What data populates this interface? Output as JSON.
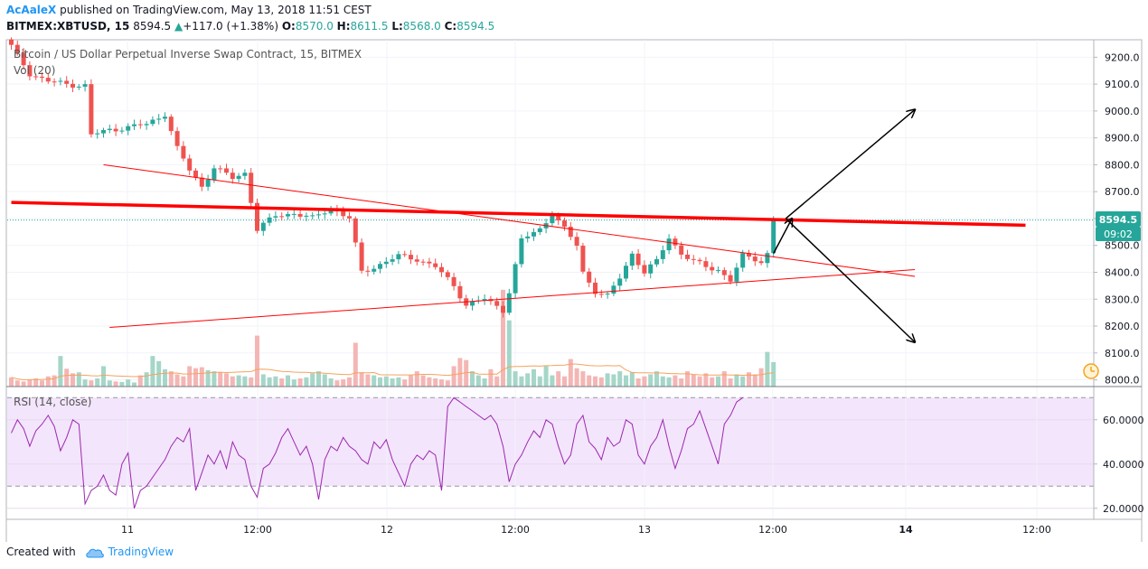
{
  "header": {
    "author": "AcAaleX",
    "published": "published on TradingView.com, May 13, 2018 11:51 CEST",
    "symbol": "BITMEX:XBTUSD, 15",
    "last": "8594.5",
    "change_arrow": "▲",
    "change": "+117.0 (+1.38%)",
    "o_label": "O:",
    "o": "8570.0",
    "h_label": "H:",
    "h": "8611.5",
    "l_label": "L:",
    "l": "8568.0",
    "c_label": "C:",
    "c": "8594.5"
  },
  "legend": {
    "main": "Bitcoin / US Dollar Perpetual Inverse Swap Contract, 15, BITMEX",
    "vol": "Vol (20)",
    "rsi": "RSI (14, close)"
  },
  "badges": {
    "price": "8594.5",
    "countdown": "09:02"
  },
  "footer": {
    "created_with": "Created with",
    "brand": "TradingView"
  },
  "colors": {
    "up": "#26a69a",
    "down": "#ef5350",
    "trendline": "#ff0000",
    "rsi_line": "#9c27b0",
    "rsi_band": "#f3e5fb",
    "badge": "#26a69a"
  },
  "chart_data": [
    {
      "type": "candlestick",
      "title": "Bitcoin / US Dollar Perpetual Inverse Swap Contract, 15, BITMEX",
      "x_ticks": [
        "11",
        "12:00",
        "12",
        "12:00",
        "13",
        "12:00",
        "14",
        "12:00"
      ],
      "y_ticks": [
        "9200.0",
        "9100.0",
        "9000.0",
        "8900.0",
        "8800.0",
        "8700.0",
        "8600.0",
        "8500.0",
        "8400.0",
        "8300.0",
        "8200.0",
        "8100.0",
        "8000.0"
      ],
      "ylim": [
        7975,
        9265
      ],
      "price_path": [
        [
          0,
          9240
        ],
        [
          3,
          9140
        ],
        [
          6,
          9110
        ],
        [
          9,
          9100
        ],
        [
          12,
          9095
        ],
        [
          13,
          8910
        ],
        [
          16,
          8930
        ],
        [
          19,
          8940
        ],
        [
          22,
          8950
        ],
        [
          25,
          8990
        ],
        [
          27,
          8860
        ],
        [
          29,
          8780
        ],
        [
          31,
          8720
        ],
        [
          33,
          8790
        ],
        [
          36,
          8750
        ],
        [
          38,
          8770
        ],
        [
          40,
          8560
        ],
        [
          43,
          8610
        ],
        [
          46,
          8620
        ],
        [
          49,
          8600
        ],
        [
          52,
          8640
        ],
        [
          55,
          8600
        ],
        [
          57,
          8400
        ],
        [
          60,
          8430
        ],
        [
          63,
          8460
        ],
        [
          66,
          8450
        ],
        [
          69,
          8420
        ],
        [
          72,
          8350
        ],
        [
          74,
          8280
        ],
        [
          77,
          8300
        ],
        [
          80,
          8260
        ],
        [
          81,
          8330
        ],
        [
          83,
          8520
        ],
        [
          86,
          8560
        ],
        [
          88,
          8620
        ],
        [
          90,
          8560
        ],
        [
          92,
          8500
        ],
        [
          93,
          8400
        ],
        [
          95,
          8330
        ],
        [
          97,
          8310
        ],
        [
          99,
          8380
        ],
        [
          101,
          8470
        ],
        [
          103,
          8400
        ],
        [
          105,
          8440
        ],
        [
          107,
          8530
        ],
        [
          109,
          8470
        ],
        [
          111,
          8440
        ],
        [
          113,
          8420
        ],
        [
          115,
          8410
        ],
        [
          117,
          8370
        ],
        [
          119,
          8460
        ],
        [
          121,
          8450
        ],
        [
          122,
          8440
        ],
        [
          123,
          8470
        ],
        [
          124,
          8594.5
        ]
      ],
      "trendlines": [
        {
          "name": "horizontal-resistance",
          "from": [
            0,
            8660
          ],
          "to": [
            165,
            8575
          ]
        },
        {
          "name": "descending-line",
          "from": [
            15,
            8800
          ],
          "to": [
            147,
            8385
          ]
        },
        {
          "name": "ascending-line",
          "from": [
            16,
            8195
          ],
          "to": [
            147,
            8410
          ]
        }
      ],
      "arrows": [
        {
          "from": [
            126,
            8600
          ],
          "to": [
            147,
            9005
          ]
        },
        {
          "from": [
            126,
            8600
          ],
          "to": [
            147,
            8140
          ]
        },
        {
          "from": [
            124,
            8470
          ],
          "to": [
            127,
            8600
          ]
        }
      ],
      "last_price": 8594.5
    },
    {
      "type": "bar",
      "title": "Vol (20)",
      "series": [
        {
          "values": [
            18,
            12,
            10,
            14,
            16,
            12,
            20,
            22,
            60,
            35,
            26,
            28,
            14,
            12,
            16,
            40,
            12,
            10,
            9,
            14,
            8,
            22,
            28,
            60,
            50,
            34,
            30,
            24,
            20,
            40,
            36,
            38,
            32,
            30,
            28,
            26,
            20,
            22,
            20,
            18,
            100,
            24,
            18,
            20,
            16,
            22,
            14,
            16,
            18,
            26,
            30,
            24,
            16,
            12,
            14,
            18,
            86,
            28,
            24,
            22,
            18,
            20,
            16,
            18,
            14,
            22,
            30,
            22,
            18,
            16,
            14,
            12,
            40,
            56,
            52,
            30,
            22,
            16,
            34,
            20,
            190,
            130,
            30,
            20,
            26,
            34,
            20,
            40,
            22,
            30,
            20,
            54,
            36,
            30,
            22,
            20,
            18,
            26,
            24,
            30,
            22,
            28,
            16,
            20,
            24,
            30,
            20,
            18,
            22,
            16,
            30,
            24,
            20,
            26,
            18,
            20,
            30,
            16,
            24,
            20,
            28,
            24,
            36,
            68,
            48
          ]
        }
      ]
    },
    {
      "type": "line",
      "title": "RSI (14, close)",
      "y_ticks": [
        "60.0000",
        "40.0000",
        "20.0000"
      ],
      "ylim": [
        15,
        75
      ],
      "band": [
        30,
        70
      ],
      "series": [
        {
          "values": [
            54,
            60,
            56,
            48,
            55,
            58,
            62,
            57,
            46,
            52,
            60,
            58,
            22,
            28,
            30,
            35,
            28,
            26,
            40,
            45,
            20,
            28,
            30,
            34,
            38,
            42,
            48,
            52,
            50,
            56,
            28,
            36,
            44,
            40,
            46,
            38,
            50,
            44,
            42,
            30,
            25,
            38,
            40,
            45,
            52,
            56,
            50,
            44,
            48,
            40,
            24,
            42,
            48,
            46,
            52,
            48,
            46,
            42,
            40,
            50,
            47,
            51,
            42,
            36,
            30,
            40,
            44,
            42,
            46,
            44,
            28,
            66,
            70,
            68,
            66,
            64,
            62,
            60,
            62,
            58,
            48,
            32,
            40,
            44,
            50,
            55,
            52,
            60,
            58,
            48,
            40,
            44,
            58,
            62,
            50,
            47,
            42,
            52,
            48,
            50,
            60,
            58,
            44,
            40,
            48,
            52,
            60,
            48,
            38,
            46,
            56,
            58,
            64,
            56,
            48,
            40,
            58,
            62,
            68,
            70
          ]
        }
      ]
    }
  ]
}
